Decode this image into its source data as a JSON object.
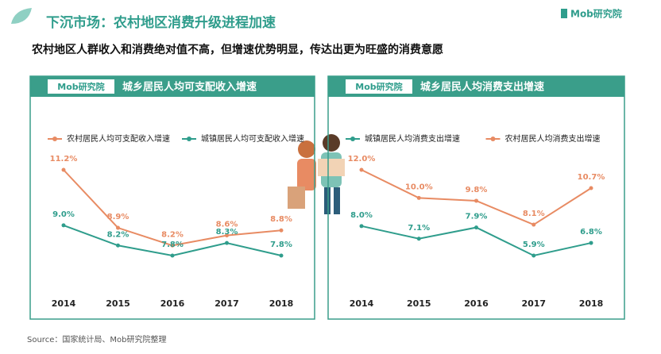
{
  "title": "下沉市场：农村地区消费升级进程加速",
  "subtitle": "农村地区人群收入和消费绝对值不高，但增速优势明显，传达出更为旺盛的消费意愿",
  "brand": "Mob研究院",
  "source": "Source：国家统计局、Mob研究院整理",
  "chart_data": [
    {
      "type": "line",
      "title": "城乡居民人均可支配收入增速",
      "categories": [
        "2014",
        "2015",
        "2016",
        "2017",
        "2018"
      ],
      "series": [
        {
          "name": "农村居民人均可支配收入增速",
          "color": "#e88b63",
          "values": [
            11.2,
            8.9,
            8.2,
            8.6,
            8.8
          ],
          "value_labels": [
            "11.2%",
            "8.9%",
            "8.2%",
            "8.6%",
            "8.8%"
          ]
        },
        {
          "name": "城镇居民人均可支配收入增速",
          "color": "#2f9d8c",
          "values": [
            9.0,
            8.2,
            7.8,
            8.3,
            7.8
          ],
          "value_labels": [
            "9.0%",
            "8.2%",
            "7.8%",
            "8.3%",
            "7.8%"
          ]
        }
      ]
    },
    {
      "type": "line",
      "title": "城乡居民人均消费支出增速",
      "categories": [
        "2014",
        "2015",
        "2016",
        "2017",
        "2018"
      ],
      "series": [
        {
          "name": "城镇居民人均消费支出增速",
          "color": "#2f9d8c",
          "values": [
            8.0,
            7.1,
            7.9,
            5.9,
            6.8
          ],
          "value_labels": [
            "8.0%",
            "7.1%",
            "7.9%",
            "5.9%",
            "6.8%"
          ]
        },
        {
          "name": "农村居民人均消费支出增速",
          "color": "#e88b63",
          "values": [
            12.0,
            10.0,
            9.8,
            8.1,
            10.7
          ],
          "value_labels": [
            "12.0%",
            "10.0%",
            "9.8%",
            "8.1%",
            "10.7%"
          ]
        }
      ]
    }
  ]
}
